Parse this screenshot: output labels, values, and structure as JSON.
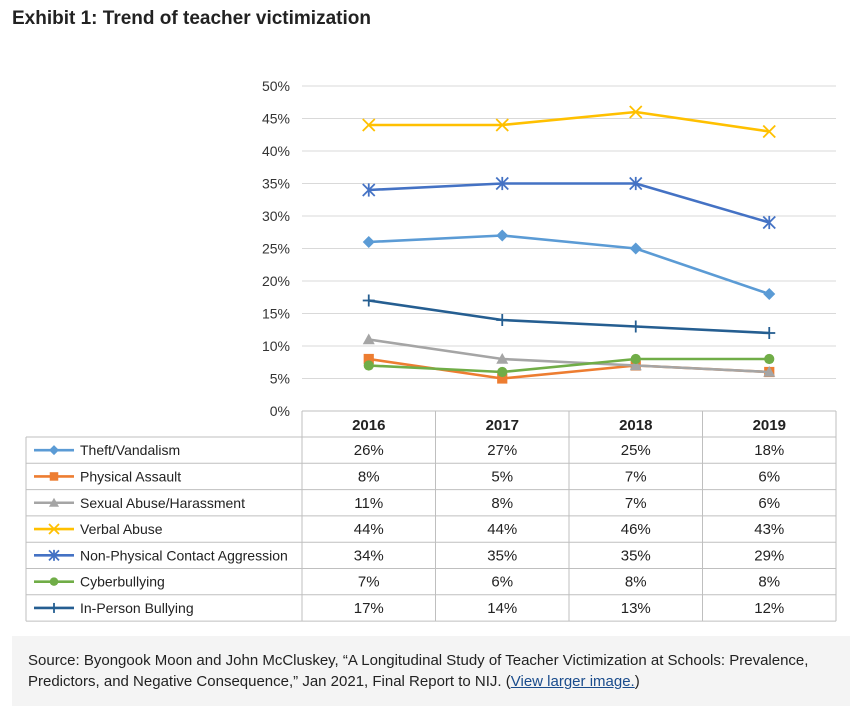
{
  "title": "Exhibit 1: Trend of teacher victimization",
  "chart_data": {
    "type": "line",
    "categories": [
      "2016",
      "2017",
      "2018",
      "2019"
    ],
    "ylim": [
      0,
      50
    ],
    "yticks": [
      "0%",
      "5%",
      "10%",
      "15%",
      "20%",
      "25%",
      "30%",
      "35%",
      "40%",
      "45%",
      "50%"
    ],
    "grid": true,
    "legend": "data-table-left",
    "series": [
      {
        "name": "Theft/Vandalism",
        "values": [
          26,
          27,
          25,
          18
        ],
        "labels": [
          "26%",
          "27%",
          "25%",
          "18%"
        ],
        "color": "#5b9bd5",
        "marker": "diamond"
      },
      {
        "name": "Physical Assault",
        "values": [
          8,
          5,
          7,
          6
        ],
        "labels": [
          "8%",
          "5%",
          "7%",
          "6%"
        ],
        "color": "#ed7d31",
        "marker": "square"
      },
      {
        "name": "Sexual Abuse/Harassment",
        "values": [
          11,
          8,
          7,
          6
        ],
        "labels": [
          "11%",
          "8%",
          "7%",
          "6%"
        ],
        "color": "#a5a5a5",
        "marker": "triangle"
      },
      {
        "name": "Verbal Abuse",
        "values": [
          44,
          44,
          46,
          43
        ],
        "labels": [
          "44%",
          "44%",
          "46%",
          "43%"
        ],
        "color": "#ffc000",
        "marker": "x"
      },
      {
        "name": "Non-Physical Contact Aggression",
        "values": [
          34,
          35,
          35,
          29
        ],
        "labels": [
          "34%",
          "35%",
          "35%",
          "29%"
        ],
        "color": "#4472c4",
        "marker": "star"
      },
      {
        "name": "Cyberbullying",
        "values": [
          7,
          6,
          8,
          8
        ],
        "labels": [
          "7%",
          "6%",
          "8%",
          "8%"
        ],
        "color": "#70ad47",
        "marker": "circle"
      },
      {
        "name": "In-Person Bullying",
        "values": [
          17,
          14,
          13,
          12
        ],
        "labels": [
          "17%",
          "14%",
          "13%",
          "12%"
        ],
        "color": "#255e91",
        "marker": "plus"
      }
    ]
  },
  "source": {
    "text": "Source: Byongook Moon and John McCluskey, “A Longitudinal Study of Teacher Victimization at Schools: Prevalence, Predictors, and Negative Consequence,” Jan 2021, Final Report to NIJ. (",
    "link": "View larger image.",
    "close": ")"
  }
}
